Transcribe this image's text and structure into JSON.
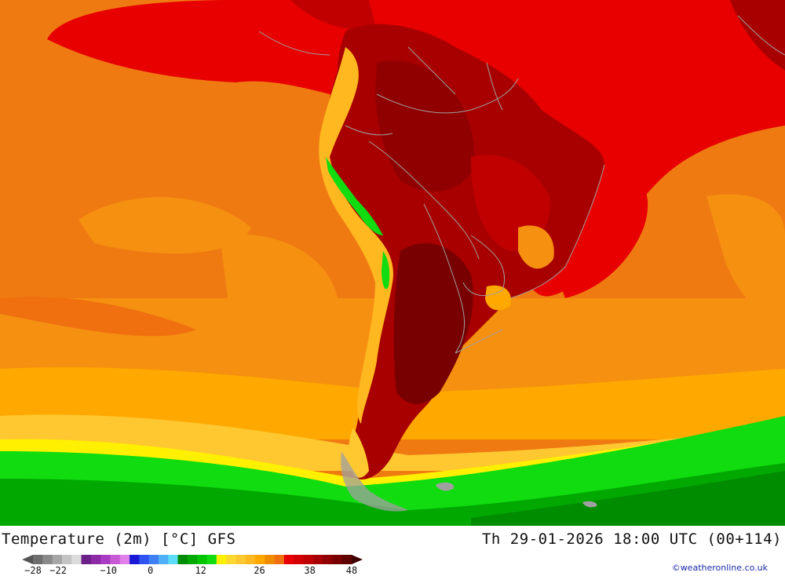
{
  "map": {
    "variable": "Temperature (2m)",
    "model": "GFS",
    "region": "South America"
  },
  "footer": {
    "title_left": "Temperature (2m) [°C] GFS",
    "title_right": "Th 29-01-2026 18:00 UTC (00+114)",
    "credit": "©weatheronline.co.uk"
  },
  "legend": {
    "tick_labels": [
      "-28",
      "-22",
      "-10",
      "0",
      "12",
      "26",
      "38",
      "48"
    ],
    "tick_values": [
      -28,
      -22,
      -10,
      0,
      12,
      26,
      38,
      48
    ],
    "range": [
      -28,
      48
    ],
    "colors": [
      "#6e6e6e",
      "#8a8a8a",
      "#a6a6a6",
      "#c4c4c4",
      "#dcdcdc",
      "#6d1f8a",
      "#8c2aa6",
      "#a93cc2",
      "#c85ad8",
      "#e080ea",
      "#1a1ad6",
      "#2f52f0",
      "#3f80f4",
      "#4fb0f8",
      "#5cdcf8",
      "#008c00",
      "#00a800",
      "#00c400",
      "#10dc10",
      "#fff000",
      "#ffd830",
      "#ffc830",
      "#ffb820",
      "#ffa800",
      "#f08c00",
      "#f07010",
      "#e80000",
      "#d40000",
      "#c00000",
      "#a80000",
      "#900000",
      "#780000",
      "#600000"
    ]
  },
  "colors": {
    "ocean_base": "#f07a12",
    "hot_land": "#a80000",
    "warm": "#e80000",
    "cool_south": "#00c400",
    "border_lines": "#a0a0a0",
    "credit_text": "#1a2aa8"
  }
}
